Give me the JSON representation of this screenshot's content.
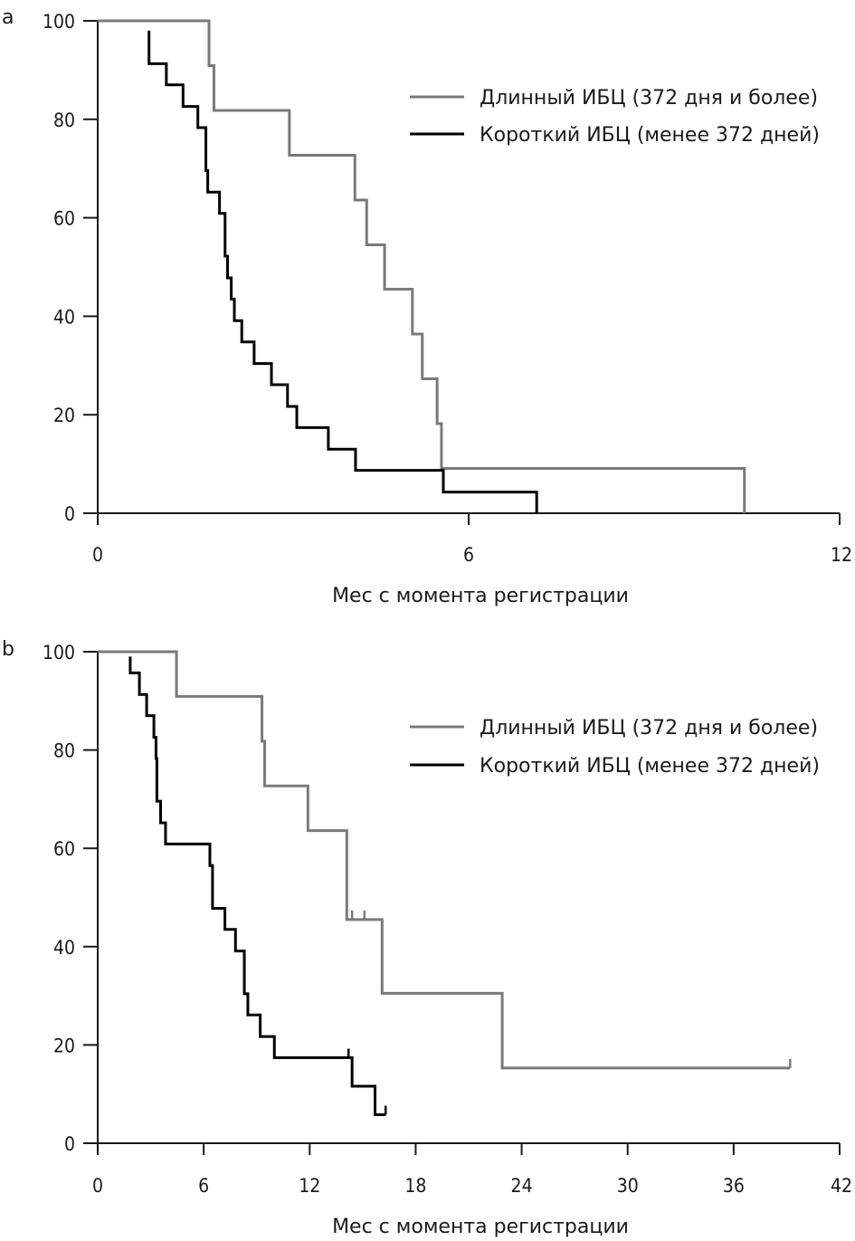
{
  "chart_data": [
    {
      "type": "line",
      "panel_label": "a",
      "title": "",
      "xlabel": "Мес с момента регистрации",
      "ylabel": "",
      "xlim": [
        0,
        12
      ],
      "ylim": [
        0,
        100
      ],
      "xticks": [
        "0",
        "6",
        "12"
      ],
      "yticks": [
        "0",
        "20",
        "40",
        "60",
        "80",
        "100"
      ],
      "grid": false,
      "legend_position": "top-right",
      "series": [
        {
          "name": "Длинный ИБЦ (372 дня и более)",
          "color": "#7a7a7a",
          "steps": [
            [
              0,
              100
            ],
            [
              1.8,
              90.9
            ],
            [
              1.88,
              81.8
            ],
            [
              3.1,
              72.7
            ],
            [
              4.16,
              63.6
            ],
            [
              4.35,
              54.5
            ],
            [
              4.64,
              45.5
            ],
            [
              5.09,
              36.4
            ],
            [
              5.25,
              27.3
            ],
            [
              5.49,
              18.2
            ],
            [
              5.56,
              9.1
            ],
            [
              10.46,
              0
            ]
          ],
          "censored": []
        },
        {
          "name": "Короткий ИБЦ (менее 372 дней)",
          "color": "#000000",
          "start": [
            0.83,
            98
          ],
          "steps": [
            [
              0.83,
              91.3
            ],
            [
              1.11,
              87
            ],
            [
              1.38,
              82.6
            ],
            [
              1.62,
              78.3
            ],
            [
              1.75,
              69.6
            ],
            [
              1.78,
              65.2
            ],
            [
              1.97,
              60.9
            ],
            [
              2.06,
              52.2
            ],
            [
              2.1,
              47.8
            ],
            [
              2.16,
              43.5
            ],
            [
              2.21,
              39.1
            ],
            [
              2.33,
              34.8
            ],
            [
              2.53,
              30.4
            ],
            [
              2.81,
              26.1
            ],
            [
              3.07,
              21.7
            ],
            [
              3.22,
              17.4
            ],
            [
              3.73,
              13.0
            ],
            [
              4.17,
              8.7
            ],
            [
              5.59,
              4.3
            ],
            [
              7.1,
              0
            ]
          ],
          "censored": []
        }
      ]
    },
    {
      "type": "line",
      "panel_label": "b",
      "title": "",
      "xlabel": "Мес с момента регистрации",
      "ylabel": "",
      "xlim": [
        0,
        42
      ],
      "ylim": [
        0,
        100
      ],
      "xticks": [
        "0",
        "6",
        "12",
        "18",
        "24",
        "30",
        "36",
        "42"
      ],
      "yticks": [
        "0",
        "20",
        "40",
        "60",
        "80",
        "100"
      ],
      "grid": false,
      "legend_position": "top-right",
      "series": [
        {
          "name": "Длинный ИБЦ (372 дня и более)",
          "color": "#7a7a7a",
          "steps": [
            [
              0,
              100
            ],
            [
              4.46,
              90.9
            ],
            [
              9.3,
              81.8
            ],
            [
              9.45,
              72.7
            ],
            [
              11.9,
              63.6
            ],
            [
              14.1,
              45.5
            ],
            [
              16.1,
              30.5
            ],
            [
              22.9,
              15.3
            ]
          ],
          "end": 39.2,
          "censored": [
            [
              14.4,
              45.5
            ],
            [
              15.1,
              45.5
            ],
            [
              39.2,
              15.3
            ]
          ]
        },
        {
          "name": "Короткий ИБЦ (менее 372 дней)",
          "color": "#000000",
          "start": [
            1.84,
            99
          ],
          "steps": [
            [
              1.84,
              95.7
            ],
            [
              2.36,
              91.3
            ],
            [
              2.77,
              87
            ],
            [
              3.18,
              82.6
            ],
            [
              3.3,
              78.3
            ],
            [
              3.35,
              69.6
            ],
            [
              3.56,
              65.2
            ],
            [
              3.84,
              60.9
            ],
            [
              6.35,
              56.5
            ],
            [
              6.5,
              47.8
            ],
            [
              7.2,
              43.5
            ],
            [
              7.8,
              39.1
            ],
            [
              8.3,
              30.4
            ],
            [
              8.5,
              26.1
            ],
            [
              9.2,
              21.7
            ],
            [
              10.0,
              17.4
            ],
            [
              14.4,
              11.6
            ],
            [
              15.7,
              5.8
            ]
          ],
          "end": 16.3,
          "censored": [
            [
              14.2,
              17.4
            ],
            [
              16.3,
              5.8
            ]
          ]
        }
      ]
    }
  ]
}
